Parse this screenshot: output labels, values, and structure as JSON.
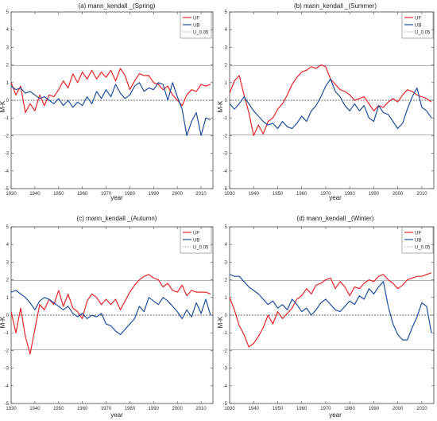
{
  "figure": {
    "panels": [
      {
        "title": "(a) mann_kendall _(Spring)",
        "xlabel": "year",
        "ylabel": "M-K",
        "legend": [
          "UF",
          "UB",
          "U_0.05"
        ]
      },
      {
        "title": "(b) mann_kendall _(Summer)",
        "xlabel": "year",
        "ylabel": "M-K",
        "legend": [
          "UF",
          "UB",
          "U_0.05"
        ]
      },
      {
        "title": "(c) mann_kendall _(Autumn)",
        "xlabel": "year",
        "ylabel": "M-K",
        "legend": [
          "UF",
          "UB",
          "U_0.05"
        ]
      },
      {
        "title": "(d) mann_kendall _(Winter)",
        "xlabel": "year",
        "ylabel": "M-K",
        "legend": [
          "UF",
          "UB",
          "U_0.05"
        ]
      }
    ]
  },
  "chart_data": [
    {
      "type": "line",
      "title": "(a) mann_kendall _(Spring)",
      "xlabel": "year",
      "ylabel": "M-K",
      "xlim": [
        1930,
        2015
      ],
      "ylim": [
        -5,
        5
      ],
      "xticks": [
        1930,
        1940,
        1950,
        1960,
        1970,
        1980,
        1990,
        2000,
        2010
      ],
      "yticks": [
        -5,
        -4,
        -3,
        -2,
        -1,
        0,
        1,
        2,
        3,
        4,
        5
      ],
      "legend_position": "top-right",
      "reference_lines": [
        -1.96,
        0,
        1.96
      ],
      "series": [
        {
          "name": "UF",
          "color": "#e8262a",
          "x": [
            1930,
            1932,
            1934,
            1936,
            1938,
            1940,
            1942,
            1944,
            1946,
            1948,
            1950,
            1952,
            1954,
            1956,
            1958,
            1960,
            1962,
            1964,
            1966,
            1968,
            1970,
            1972,
            1974,
            1976,
            1978,
            1980,
            1982,
            1984,
            1986,
            1988,
            1990,
            1992,
            1994,
            1996,
            1998,
            2000,
            2002,
            2004,
            2006,
            2008,
            2010,
            2012,
            2014
          ],
          "values": [
            1.0,
            0.3,
            0.8,
            -0.7,
            -0.2,
            -0.6,
            0.3,
            -0.3,
            0.3,
            0.2,
            0.6,
            1.1,
            0.7,
            1.5,
            1.0,
            1.6,
            1.2,
            1.7,
            1.2,
            1.6,
            1.3,
            1.7,
            1.1,
            1.8,
            1.4,
            0.6,
            1.1,
            1.5,
            1.4,
            1.4,
            1.0,
            0.9,
            0.6,
            0.8,
            0.3,
            0.0,
            -0.3,
            0.3,
            0.6,
            0.5,
            0.9,
            0.8,
            0.9
          ]
        },
        {
          "name": "UB",
          "color": "#1f4e9c",
          "x": [
            1930,
            1932,
            1934,
            1936,
            1938,
            1940,
            1942,
            1944,
            1946,
            1948,
            1950,
            1952,
            1954,
            1956,
            1958,
            1960,
            1962,
            1964,
            1966,
            1968,
            1970,
            1972,
            1974,
            1976,
            1978,
            1980,
            1982,
            1984,
            1986,
            1988,
            1990,
            1992,
            1994,
            1996,
            1998,
            2000,
            2002,
            2004,
            2006,
            2008,
            2010,
            2012,
            2014
          ],
          "values": [
            0.8,
            0.6,
            0.7,
            0.4,
            0.5,
            0.3,
            0.1,
            0.2,
            0.0,
            -0.2,
            0.1,
            -0.3,
            0.0,
            -0.4,
            -0.1,
            -0.3,
            0.2,
            -0.2,
            0.5,
            0.1,
            0.6,
            0.2,
            0.9,
            0.4,
            0.1,
            0.3,
            0.8,
            1.0,
            0.5,
            0.7,
            0.6,
            1.0,
            0.9,
            0.0,
            1.0,
            0.2,
            -0.5,
            -2.0,
            -1.2,
            -0.7,
            -2.0,
            -1.0,
            -1.1
          ]
        }
      ]
    },
    {
      "type": "line",
      "title": "(b) mann_kendall _(Summer)",
      "xlabel": "year",
      "ylabel": "M-K",
      "xlim": [
        1930,
        2015
      ],
      "ylim": [
        -5,
        5
      ],
      "xticks": [
        1930,
        1940,
        1950,
        1960,
        1970,
        1980,
        1990,
        2000,
        2010
      ],
      "yticks": [
        -5,
        -4,
        -3,
        -2,
        -1,
        0,
        1,
        2,
        3,
        4,
        5
      ],
      "legend_position": "top-right",
      "reference_lines": [
        -1.96,
        0,
        1.96
      ],
      "series": [
        {
          "name": "UF",
          "color": "#e8262a",
          "x": [
            1930,
            1932,
            1934,
            1936,
            1938,
            1940,
            1942,
            1944,
            1946,
            1948,
            1950,
            1952,
            1954,
            1956,
            1958,
            1960,
            1962,
            1964,
            1966,
            1968,
            1970,
            1972,
            1974,
            1976,
            1978,
            1980,
            1982,
            1984,
            1986,
            1988,
            1990,
            1992,
            1994,
            1996,
            1998,
            2000,
            2002,
            2004,
            2006,
            2008,
            2010,
            2012,
            2014
          ],
          "values": [
            0.4,
            1.1,
            1.4,
            0.3,
            -0.7,
            -2.0,
            -1.4,
            -1.9,
            -1.2,
            -1.0,
            -0.5,
            -0.2,
            0.3,
            0.9,
            1.3,
            1.6,
            1.7,
            1.9,
            1.8,
            2.0,
            1.9,
            1.2,
            0.9,
            0.6,
            0.5,
            0.3,
            0.0,
            0.1,
            0.2,
            -0.2,
            -0.6,
            -0.3,
            -0.4,
            -0.1,
            0.1,
            -0.1,
            0.3,
            0.6,
            0.5,
            0.3,
            0.2,
            0.1,
            -0.1
          ]
        },
        {
          "name": "UB",
          "color": "#1f4e9c",
          "x": [
            1930,
            1932,
            1934,
            1936,
            1938,
            1940,
            1942,
            1944,
            1946,
            1948,
            1950,
            1952,
            1954,
            1956,
            1958,
            1960,
            1962,
            1964,
            1966,
            1968,
            1970,
            1972,
            1974,
            1976,
            1978,
            1980,
            1982,
            1984,
            1986,
            1988,
            1990,
            1992,
            1994,
            1996,
            1998,
            2000,
            2002,
            2004,
            2006,
            2008,
            2010,
            2012,
            2014
          ],
          "values": [
            -0.2,
            -0.5,
            -0.2,
            0.2,
            -0.2,
            -0.6,
            -0.9,
            -1.2,
            -1.4,
            -1.3,
            -1.6,
            -1.2,
            -1.5,
            -1.6,
            -1.3,
            -0.9,
            -1.2,
            -0.6,
            -0.3,
            0.2,
            0.8,
            1.2,
            0.5,
            0.2,
            -0.3,
            -0.6,
            -0.2,
            -0.6,
            -0.3,
            -1.0,
            -1.2,
            -0.3,
            -0.7,
            -0.8,
            -1.2,
            -1.6,
            -1.3,
            -0.5,
            0.2,
            0.7,
            -0.4,
            -0.6,
            -1.0
          ]
        }
      ]
    },
    {
      "type": "line",
      "title": "(c) mann_kendall _(Autumn)",
      "xlabel": "year",
      "ylabel": "M-K",
      "xlim": [
        1930,
        2015
      ],
      "ylim": [
        -5,
        5
      ],
      "xticks": [
        1930,
        1940,
        1950,
        1960,
        1970,
        1980,
        1990,
        2000,
        2010
      ],
      "yticks": [
        -5,
        -4,
        -3,
        -2,
        -1,
        0,
        1,
        2,
        3,
        4,
        5
      ],
      "legend_position": "top-right",
      "reference_lines": [
        -1.96,
        0,
        1.96
      ],
      "series": [
        {
          "name": "UF",
          "color": "#e8262a",
          "x": [
            1930,
            1932,
            1934,
            1936,
            1938,
            1940,
            1942,
            1944,
            1946,
            1948,
            1950,
            1952,
            1954,
            1956,
            1958,
            1960,
            1962,
            1964,
            1966,
            1968,
            1970,
            1972,
            1974,
            1976,
            1978,
            1980,
            1982,
            1984,
            1986,
            1988,
            1990,
            1992,
            1994,
            1996,
            1998,
            2000,
            2002,
            2004,
            2006,
            2008,
            2010,
            2012,
            2014
          ],
          "values": [
            0.2,
            -1.0,
            0.4,
            -1.2,
            -2.2,
            -0.8,
            0.6,
            0.3,
            0.9,
            0.6,
            1.4,
            0.5,
            1.2,
            0.4,
            0.2,
            -0.2,
            0.8,
            1.2,
            1.0,
            0.6,
            0.9,
            0.6,
            0.9,
            0.3,
            0.8,
            1.3,
            1.7,
            2.0,
            2.2,
            2.3,
            2.1,
            2.0,
            1.6,
            1.8,
            1.4,
            1.3,
            1.7,
            1.1,
            1.4,
            1.3,
            1.3,
            1.3,
            1.2
          ]
        },
        {
          "name": "UB",
          "color": "#1f4e9c",
          "x": [
            1930,
            1932,
            1934,
            1936,
            1938,
            1940,
            1942,
            1944,
            1946,
            1948,
            1950,
            1952,
            1954,
            1956,
            1958,
            1960,
            1962,
            1964,
            1966,
            1968,
            1970,
            1972,
            1974,
            1976,
            1978,
            1980,
            1982,
            1984,
            1986,
            1988,
            1990,
            1992,
            1994,
            1996,
            1998,
            2000,
            2002,
            2004,
            2006,
            2008,
            2010,
            2012,
            2014
          ],
          "values": [
            1.3,
            1.4,
            1.2,
            1.0,
            0.7,
            0.3,
            0.8,
            1.0,
            0.9,
            0.7,
            0.5,
            0.3,
            0.5,
            0.1,
            -0.1,
            0.1,
            -0.2,
            0.0,
            -0.1,
            0.1,
            -0.5,
            -0.6,
            -0.9,
            -1.1,
            -0.8,
            -0.5,
            -0.2,
            0.5,
            0.2,
            1.0,
            0.8,
            0.6,
            1.0,
            0.8,
            0.5,
            0.2,
            -0.2,
            0.3,
            -0.1,
            0.7,
            0.1,
            0.9,
            0.0
          ]
        }
      ]
    },
    {
      "type": "line",
      "title": "(d) mann_kendall _(Winter)",
      "xlabel": "year",
      "ylabel": "M-K",
      "xlim": [
        1930,
        2015
      ],
      "ylim": [
        -5,
        5
      ],
      "xticks": [
        1930,
        1940,
        1950,
        1960,
        1970,
        1980,
        1990,
        2000,
        2010
      ],
      "yticks": [
        -5,
        -4,
        -3,
        -2,
        -1,
        0,
        1,
        2,
        3,
        4,
        5
      ],
      "legend_position": "top-right",
      "reference_lines": [
        -1.96,
        0,
        1.96
      ],
      "series": [
        {
          "name": "UF",
          "color": "#e8262a",
          "x": [
            1930,
            1932,
            1934,
            1936,
            1938,
            1940,
            1942,
            1944,
            1946,
            1948,
            1950,
            1952,
            1954,
            1956,
            1958,
            1960,
            1962,
            1964,
            1966,
            1968,
            1970,
            1972,
            1974,
            1976,
            1978,
            1980,
            1982,
            1984,
            1986,
            1988,
            1990,
            1992,
            1994,
            1996,
            1998,
            2000,
            2002,
            2004,
            2006,
            2008,
            2010,
            2012,
            2014
          ],
          "values": [
            1.0,
            0.3,
            -0.6,
            -1.1,
            -1.8,
            -1.6,
            -1.2,
            -0.7,
            0.0,
            -0.5,
            0.2,
            -0.2,
            0.1,
            0.4,
            0.9,
            1.1,
            1.5,
            1.2,
            1.7,
            1.8,
            2.0,
            2.1,
            1.5,
            1.9,
            1.6,
            1.1,
            1.6,
            1.5,
            1.8,
            2.0,
            1.9,
            2.2,
            2.3,
            2.0,
            1.8,
            1.5,
            1.7,
            2.0,
            2.1,
            2.2,
            2.2,
            2.3,
            2.4
          ]
        },
        {
          "name": "UB",
          "color": "#1f4e9c",
          "x": [
            1930,
            1932,
            1934,
            1936,
            1938,
            1940,
            1942,
            1944,
            1946,
            1948,
            1950,
            1952,
            1954,
            1956,
            1958,
            1960,
            1962,
            1964,
            1966,
            1968,
            1970,
            1972,
            1974,
            1976,
            1978,
            1980,
            1982,
            1984,
            1986,
            1988,
            1990,
            1992,
            1994,
            1996,
            1998,
            2000,
            2002,
            2004,
            2006,
            2008,
            2010,
            2012,
            2014
          ],
          "values": [
            2.3,
            2.2,
            2.2,
            1.9,
            1.6,
            1.4,
            1.2,
            0.9,
            0.6,
            0.8,
            0.4,
            0.6,
            0.3,
            0.9,
            0.6,
            0.2,
            0.4,
            0.0,
            0.3,
            0.7,
            0.9,
            0.6,
            0.3,
            0.2,
            0.5,
            0.8,
            0.6,
            1.1,
            0.9,
            1.5,
            1.2,
            1.6,
            1.9,
            0.5,
            -0.5,
            -1.1,
            -1.4,
            -1.4,
            -0.7,
            -0.1,
            0.7,
            0.5,
            -1.0
          ]
        }
      ]
    }
  ]
}
